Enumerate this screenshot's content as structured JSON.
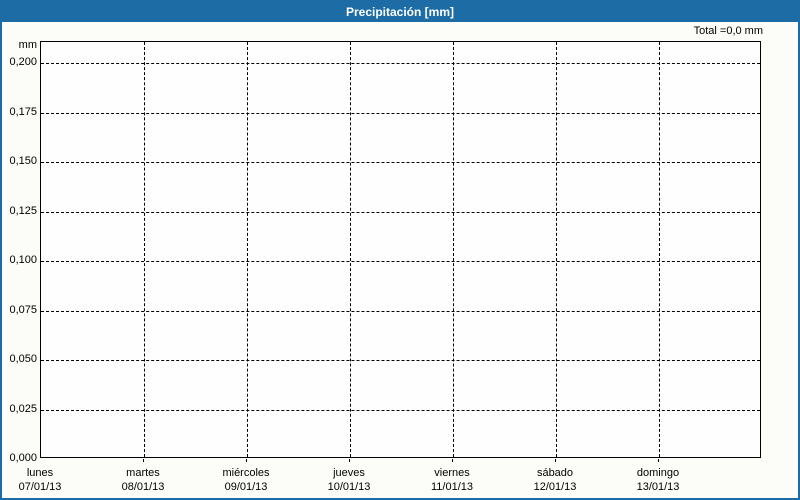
{
  "header": {
    "title": "Precipitación [mm]"
  },
  "chart_data": {
    "type": "bar",
    "title": "Precipitación [mm]",
    "total_label": "Total =0,0 mm",
    "grid": "dashed",
    "legend": "none",
    "y_axis": {
      "unit": "mm",
      "min": 0,
      "max": 0.2,
      "step": 0.025,
      "ticks": [
        "0,200",
        "0,175",
        "0,150",
        "0,125",
        "0,100",
        "0,075",
        "0,050",
        "0,025",
        "0,000"
      ]
    },
    "x_axis": {
      "days": [
        {
          "name": "lunes",
          "date": "07/01/13"
        },
        {
          "name": "martes",
          "date": "08/01/13"
        },
        {
          "name": "miércoles",
          "date": "09/01/13"
        },
        {
          "name": "jueves",
          "date": "10/01/13"
        },
        {
          "name": "viernes",
          "date": "11/01/13"
        },
        {
          "name": "sábado",
          "date": "12/01/13"
        },
        {
          "name": "domingo",
          "date": "13/01/13"
        }
      ]
    },
    "series": [
      {
        "name": "Precipitación",
        "values": [
          0,
          0,
          0,
          0,
          0,
          0,
          0
        ]
      }
    ],
    "colors": {
      "header_bg": "#1d6ca5",
      "header_text": "#ffffff",
      "border": "#1d6ca5",
      "axis": "#000000",
      "text": "#000000",
      "plot_bg": "#fefefe"
    }
  }
}
